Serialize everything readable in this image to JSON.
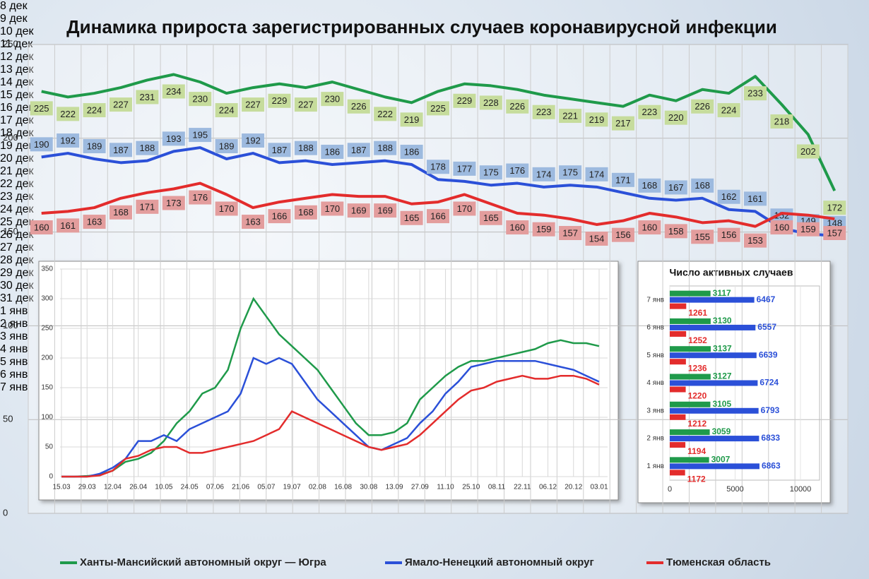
{
  "chart_data": [
    {
      "type": "line",
      "title": "Динамика прироста зарегистрированных случаев коронавирусной инфекции",
      "categories": [
        "8 дек",
        "9 дек",
        "10 дек",
        "11 дек",
        "12 дек",
        "13 дек",
        "14 дек",
        "15 дек",
        "16 дек",
        "17 дек",
        "18 дек",
        "19 дек",
        "20 дек",
        "21 дек",
        "22 дек",
        "23 дек",
        "24 дек",
        "25 дек",
        "26 дек",
        "27 дек",
        "28 дек",
        "29 дек",
        "30 дек",
        "31 дек",
        "1 янв",
        "2 янв",
        "3 янв",
        "4 янв",
        "5 янв",
        "6 янв",
        "7 янв"
      ],
      "series": [
        {
          "name": "Ханты-Мансийский автономный округ — Югра",
          "color": "#1f9a4a",
          "label_color": "#c6dc9c",
          "values": [
            225,
            222,
            224,
            227,
            231,
            234,
            230,
            224,
            227,
            229,
            227,
            230,
            226,
            222,
            219,
            225,
            229,
            228,
            226,
            223,
            221,
            219,
            217,
            223,
            220,
            226,
            224,
            233,
            218,
            202,
            172
          ]
        },
        {
          "name": "Ямало-Ненецкий автономный округ",
          "color": "#2b50d8",
          "label_color": "#9dbadf",
          "values": [
            190,
            192,
            189,
            187,
            188,
            193,
            195,
            189,
            192,
            187,
            188,
            186,
            187,
            188,
            186,
            178,
            177,
            175,
            176,
            174,
            175,
            174,
            171,
            168,
            167,
            168,
            162,
            161,
            152,
            149,
            148
          ]
        },
        {
          "name": "Тюменская область",
          "color": "#e32c2c",
          "label_color": "#e39d9d",
          "values": [
            160,
            161,
            163,
            168,
            171,
            173,
            176,
            170,
            163,
            166,
            168,
            170,
            169,
            169,
            165,
            166,
            170,
            165,
            160,
            159,
            157,
            154,
            156,
            160,
            158,
            155,
            156,
            153,
            160,
            159,
            157
          ]
        }
      ],
      "ylim": [
        0,
        250
      ],
      "yticks": [
        0,
        50,
        100,
        150,
        200,
        250
      ],
      "grid": true,
      "data_labels": true,
      "legend": "bottom"
    },
    {
      "type": "line",
      "categories": [
        "15.03",
        null,
        "29.03",
        null,
        "12.04",
        null,
        "26.04",
        null,
        "10.05",
        null,
        "24.05",
        null,
        "07.06",
        null,
        "21.06",
        null,
        "05.07",
        null,
        "19.07",
        null,
        "02.08",
        null,
        "16.08",
        null,
        "30.08",
        null,
        "13.09",
        null,
        "27.09",
        null,
        "11.10",
        null,
        "25.10",
        null,
        "08.11",
        null,
        "22.11",
        null,
        "06.12",
        null,
        "20.12",
        null,
        "03.01"
      ],
      "series": [
        {
          "color": "#1f9a4a",
          "values": [
            0,
            0,
            1,
            3,
            10,
            25,
            30,
            40,
            60,
            90,
            110,
            140,
            150,
            180,
            250,
            300,
            270,
            240,
            220,
            200,
            180,
            150,
            120,
            90,
            70,
            70,
            75,
            90,
            130,
            150,
            170,
            185,
            195,
            195,
            200,
            205,
            210,
            215,
            225,
            230,
            225,
            225,
            220
          ]
        },
        {
          "color": "#2b50d8",
          "values": [
            0,
            0,
            0,
            5,
            15,
            30,
            60,
            60,
            70,
            60,
            80,
            90,
            100,
            110,
            140,
            200,
            190,
            200,
            190,
            160,
            130,
            110,
            90,
            70,
            50,
            45,
            55,
            65,
            90,
            110,
            140,
            160,
            185,
            190,
            195,
            195,
            195,
            195,
            190,
            185,
            180,
            170,
            160
          ]
        },
        {
          "color": "#e32c2c",
          "values": [
            0,
            0,
            0,
            2,
            10,
            30,
            35,
            45,
            50,
            50,
            40,
            40,
            45,
            50,
            55,
            60,
            70,
            80,
            110,
            100,
            90,
            80,
            70,
            60,
            50,
            45,
            50,
            55,
            70,
            90,
            110,
            130,
            145,
            150,
            160,
            165,
            170,
            165,
            165,
            170,
            170,
            165,
            155
          ]
        }
      ],
      "ylim": [
        0,
        350
      ],
      "yticks": [
        0,
        50,
        100,
        150,
        200,
        250,
        300,
        350
      ],
      "grid": true
    },
    {
      "type": "hbar",
      "title": "Число активных случаев",
      "categories": [
        "7 янв",
        "6 янв",
        "5 янв",
        "4 янв",
        "3 янв",
        "2 янв",
        "1 янв"
      ],
      "series": [
        {
          "color": "#1f9a4a",
          "values": [
            3117,
            3130,
            3137,
            3127,
            3105,
            3059,
            3007
          ]
        },
        {
          "color": "#2b50d8",
          "values": [
            6467,
            6557,
            6639,
            6724,
            6793,
            6833,
            6863
          ]
        },
        {
          "color": "#e32c2c",
          "values": [
            1261,
            1252,
            1236,
            1220,
            1212,
            1194,
            1172
          ]
        }
      ],
      "xlim": [
        0,
        10000
      ],
      "xticks": [
        0,
        5000,
        10000
      ],
      "grid": true,
      "data_labels": true
    }
  ]
}
